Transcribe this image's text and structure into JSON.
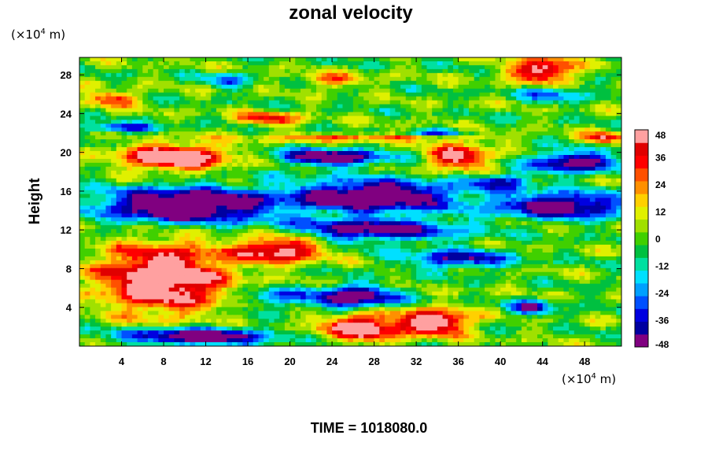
{
  "chart_data": {
    "type": "heatmap",
    "title": "zonal velocity",
    "ylabel": "Height",
    "xlabel": "",
    "x_unit_prefix": "(×10",
    "x_unit_exp": "4",
    "x_unit_suffix": " m)",
    "y_unit_prefix": "(×10",
    "y_unit_exp": "4",
    "y_unit_suffix": " m)",
    "xlim": [
      0,
      51.5
    ],
    "ylim": [
      0,
      29.8
    ],
    "x_ticks": [
      4,
      8,
      12,
      16,
      20,
      24,
      28,
      32,
      36,
      40,
      44,
      48
    ],
    "y_ticks": [
      4,
      8,
      12,
      16,
      20,
      24,
      28
    ],
    "colorbar": {
      "min": -48,
      "max": 48,
      "step": 6,
      "ticks": [
        48,
        36,
        24,
        12,
        0,
        -12,
        -24,
        -36,
        -48
      ],
      "colors": [
        "#800080",
        "#0000a0",
        "#0000e0",
        "#0050ff",
        "#00a0ff",
        "#00e0ff",
        "#00e0a0",
        "#00c040",
        "#40d000",
        "#a0e000",
        "#e0f000",
        "#ffd000",
        "#ff9000",
        "#ff5000",
        "#ff0000",
        "#e00000",
        "#ffa0a0"
      ]
    },
    "time_label": "TIME = 1018080.0"
  }
}
